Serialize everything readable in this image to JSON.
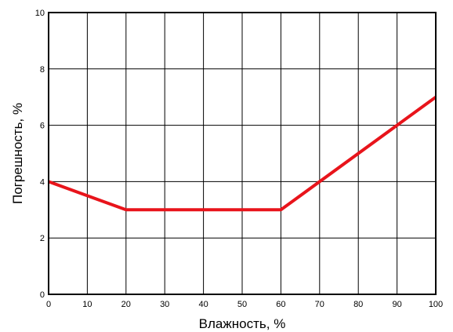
{
  "chart_data": {
    "type": "line",
    "title": "",
    "xlabel": "Влажность, %",
    "ylabel": "Погрешность, %",
    "xlim": [
      0,
      100
    ],
    "ylim": [
      0,
      10
    ],
    "x_ticks": [
      0,
      10,
      20,
      30,
      40,
      50,
      60,
      70,
      80,
      90,
      100
    ],
    "y_ticks": [
      0,
      2,
      4,
      6,
      8,
      10
    ],
    "grid": true,
    "legend": "none",
    "series": [
      {
        "color": "#e8141b",
        "points": [
          {
            "x": 0,
            "y": 4
          },
          {
            "x": 20,
            "y": 3
          },
          {
            "x": 60,
            "y": 3
          },
          {
            "x": 100,
            "y": 7
          }
        ]
      }
    ]
  }
}
